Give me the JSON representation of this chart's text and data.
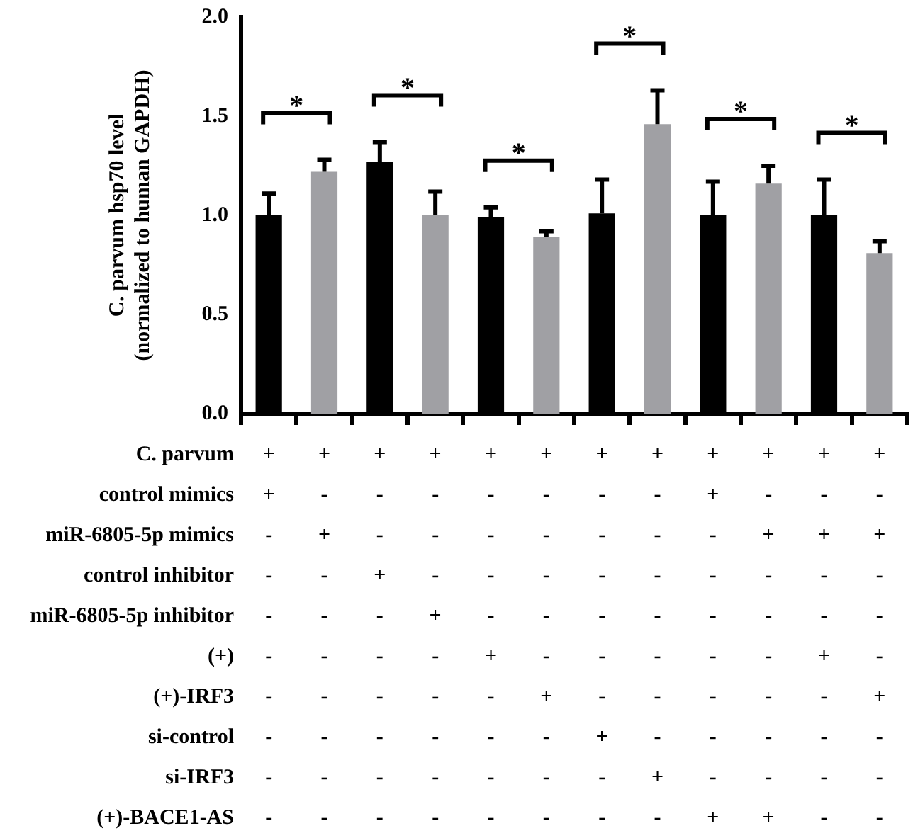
{
  "chart_data": {
    "type": "bar",
    "ylabel": "C. parvum hsp70 level\n(normalized to human GAPDH)",
    "categories": [
      "+\n+\n-\n-\n-\n-\n-\n-\n-\n-",
      "+\n-\n+\n-\n-\n-\n-\n-\n-\n-",
      "+\n-\n-\n+\n-\n-\n-\n-\n-\n-",
      "+\n-\n-\n-\n+\n-\n-\n-\n-\n-",
      "+\n-\n-\n-\n-\n+\n-\n-\n-\n-",
      "+\n-\n-\n-\n-\n-\n+\n-\n-\n-",
      "+\n-\n-\n-\n-\n-\n-\n+\n-\n-",
      "+\n-\n-\n-\n-\n-\n-\n-\n+\n-",
      "+\n+\n-\n-\n-\n-\n-\n-\n-\n+",
      "+\n-\n+\n-\n-\n-\n-\n-\n-\n+",
      "+\n-\n+\n-\n-\n+\n-\n-\n-\n-",
      "+\n-\n+\n-\n-\n-\n+\n-\n-\n-"
    ],
    "values": [
      1.0,
      1.22,
      1.27,
      1.0,
      0.99,
      0.89,
      1.01,
      1.46,
      1.0,
      1.16,
      1.0,
      0.81
    ],
    "colors": [
      "#000000",
      "#a0a0a4",
      "#000000",
      "#a0a0a4",
      "#000000",
      "#a0a0a4",
      "#000000",
      "#a0a0a4",
      "#000000",
      "#a0a0a4",
      "#000000",
      "#a0a0a4"
    ],
    "errors": [
      [
        1.0,
        1.11
      ],
      [
        1.22,
        1.28
      ],
      [
        1.27,
        1.37
      ],
      [
        1.0,
        1.12
      ],
      [
        0.99,
        1.04
      ],
      [
        0.89,
        0.92
      ],
      [
        1.01,
        1.18
      ],
      [
        1.46,
        1.63
      ],
      [
        1.0,
        1.17
      ],
      [
        1.16,
        1.25
      ],
      [
        1.0,
        1.18
      ],
      [
        0.81,
        0.87
      ]
    ],
    "ylim": [
      0,
      2
    ],
    "yticks": [
      {
        "value": 0,
        "label": "0.0"
      },
      {
        "value": 0.5,
        "label": "0.5"
      },
      {
        "value": 1,
        "label": "1.0"
      },
      {
        "value": 1.5,
        "label": "1.5"
      },
      {
        "value": 2,
        "label": "2.0"
      }
    ],
    "grid": false,
    "legend": false,
    "annotations": [
      "*",
      "*",
      "*",
      "*",
      "*",
      "*",
      "C. parvum",
      "control mimics",
      "miR-6805-5p mimics",
      "control inhibitor",
      "miR-6805-5p inhibitor",
      "(+)",
      "(+)-IRF3",
      "si-control",
      "si-IRF3",
      "(+)-BACE1-AS"
    ]
  }
}
